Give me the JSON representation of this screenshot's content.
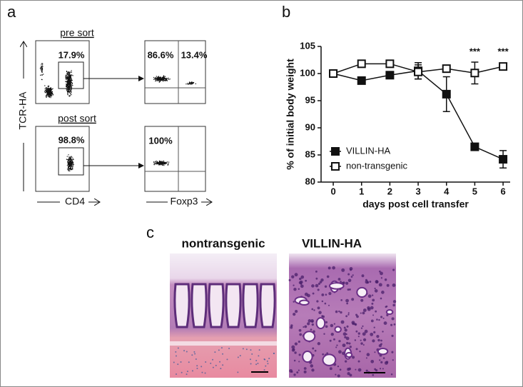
{
  "panel_a": {
    "label": "a",
    "pre_sort": "pre sort",
    "post_sort": "post sort",
    "pre_gate": "17.9%",
    "pre_q1": "86.6%",
    "pre_q2": "13.4%",
    "post_gate": "98.8%",
    "post_q1": "100%",
    "y_axis": "TCR-HA",
    "x_axis_left": "CD4",
    "x_axis_right": "Foxp3"
  },
  "panel_b": {
    "label": "b"
  },
  "chart_data": {
    "type": "line",
    "xlabel": "days post cell transfer",
    "ylabel": "% of initial body weight",
    "x": [
      0,
      1,
      2,
      3,
      4,
      5,
      6
    ],
    "series": [
      {
        "name": "VILLIN-HA",
        "color": "#111111",
        "marker": "filled",
        "values": [
          100,
          98.7,
          99.7,
          100.5,
          96.2,
          86.5,
          84.2
        ],
        "errors": [
          null,
          null,
          null,
          1.5,
          3.2,
          null,
          1.6
        ]
      },
      {
        "name": "non-transgenic",
        "color": "#111111",
        "marker": "open",
        "values": [
          100,
          101.8,
          101.8,
          100.3,
          100.9,
          100.1,
          101.3
        ],
        "errors": [
          null,
          null,
          null,
          1.3,
          null,
          2.0,
          null
        ]
      }
    ],
    "annotations": [
      {
        "text": "***",
        "x": 5
      },
      {
        "text": "***",
        "x": 6
      }
    ],
    "xlim": [
      -0.43,
      6.25
    ],
    "ylim": [
      80,
      105
    ],
    "xticks": [
      0,
      1,
      2,
      3,
      4,
      5,
      6
    ],
    "yticks": [
      80,
      85,
      90,
      95,
      100,
      105
    ],
    "legend": "lower left"
  },
  "panel_c": {
    "label": "c",
    "left_title": "nontransgenic",
    "right_title": "VILLIN-HA"
  }
}
